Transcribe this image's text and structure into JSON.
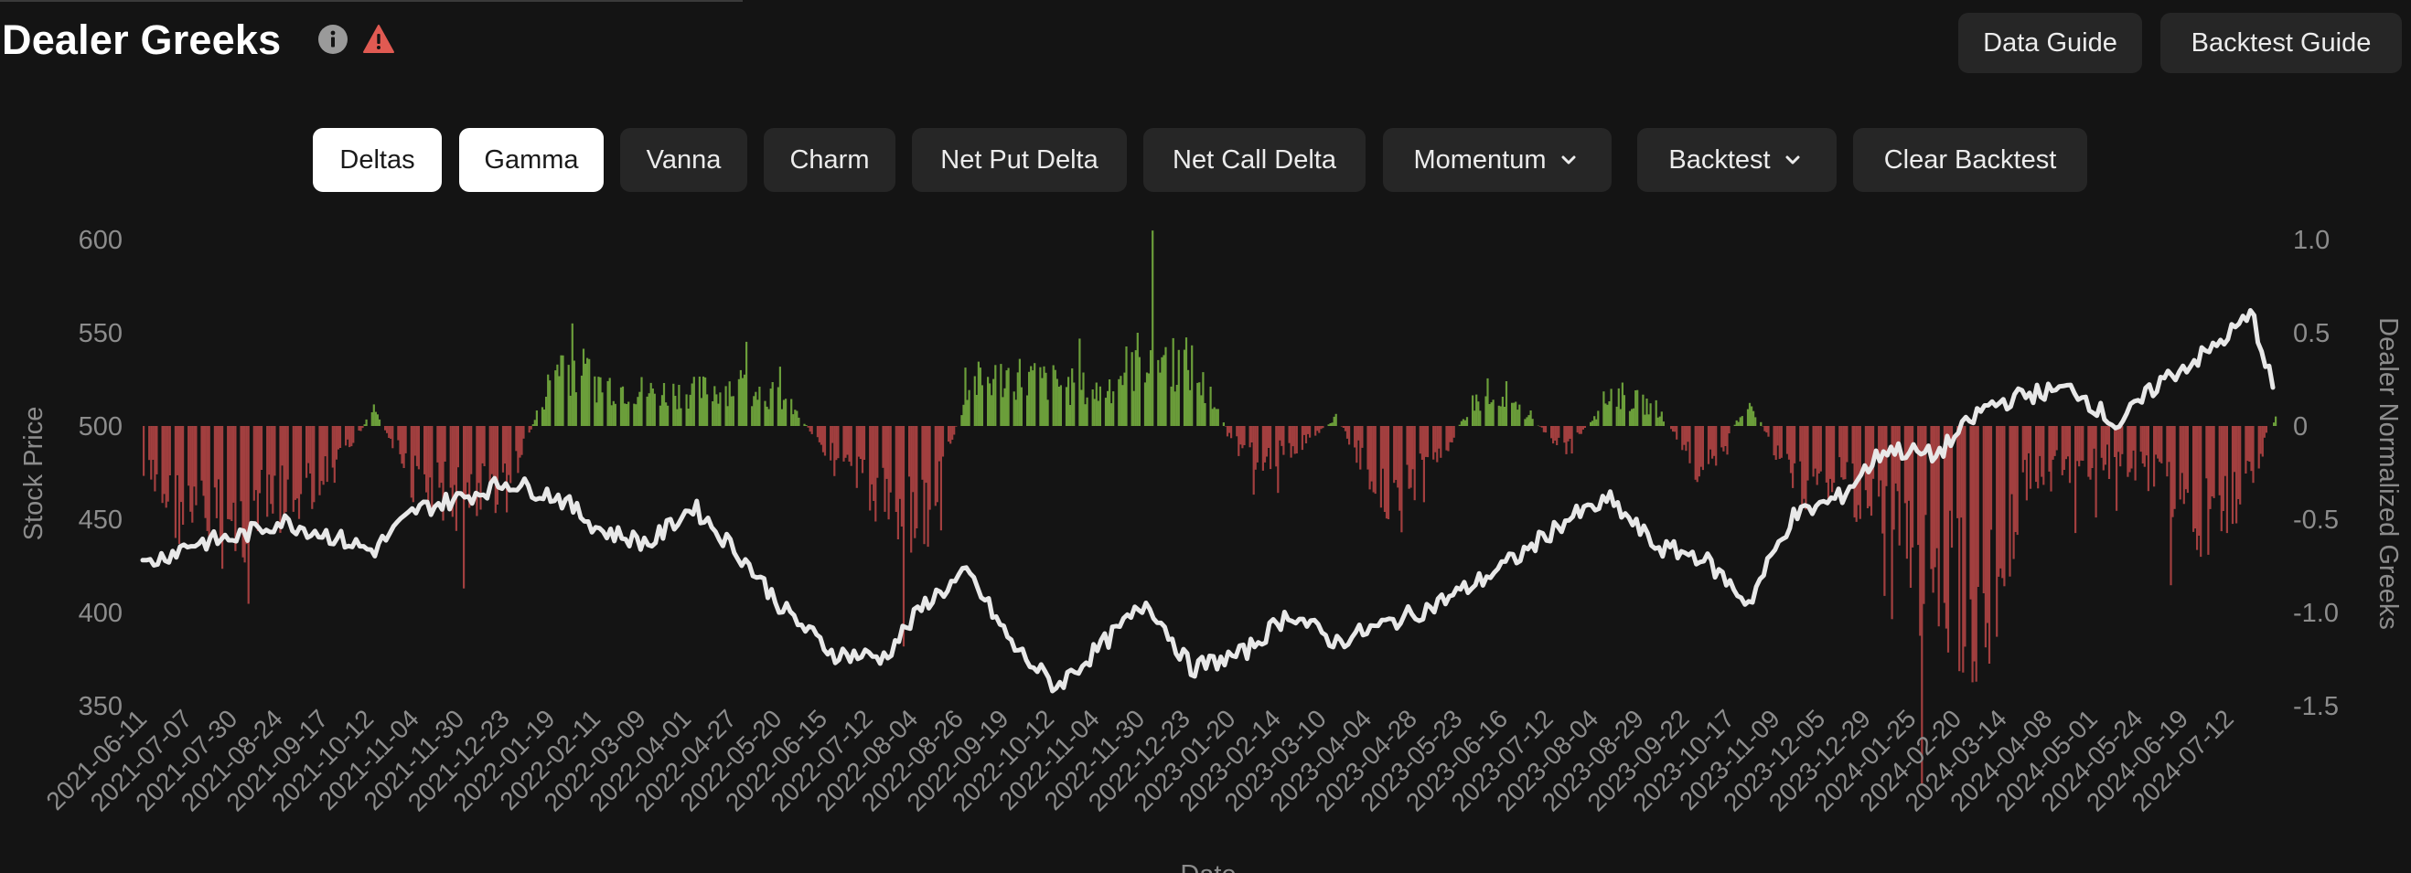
{
  "header": {
    "title": "Dealer Greeks",
    "data_guide_label": "Data Guide",
    "backtest_guide_label": "Backtest Guide"
  },
  "tabs": [
    {
      "label": "Deltas",
      "active": true
    },
    {
      "label": "Gamma",
      "active": true
    },
    {
      "label": "Vanna",
      "active": false
    },
    {
      "label": "Charm",
      "active": false
    },
    {
      "label": "Net Put Delta",
      "active": false
    },
    {
      "label": "Net Call Delta",
      "active": false
    },
    {
      "label": "Momentum",
      "active": false,
      "dropdown": true
    },
    {
      "label": "Backtest",
      "active": false,
      "dropdown": true
    },
    {
      "label": "Clear Backtest",
      "active": false
    }
  ],
  "colors": {
    "background": "#141414",
    "button": "#262626",
    "active_button": "#ffffff",
    "positive_bar": "#6b9e3a",
    "negative_bar": "#a23f3f",
    "price_line": "#e8e8e8",
    "axis_text": "#8c8c8c",
    "warning": "#e05a52"
  },
  "chart_data": {
    "type": "bar",
    "xlabel": "Date",
    "ylabel": "Stock Price",
    "y2label": "Dealer Normalized Greeks",
    "ylim": [
      350,
      600
    ],
    "y2lim": [
      -1.5,
      1.0
    ],
    "yticks": [
      600,
      550,
      500,
      450,
      400,
      350
    ],
    "y2ticks": [
      "1.0",
      "0.5",
      "0",
      "-0.5",
      "-1.0",
      "-1.5"
    ],
    "x_ticks": [
      "2021-06-11",
      "2021-07-07",
      "2021-07-30",
      "2021-08-24",
      "2021-09-17",
      "2021-10-12",
      "2021-11-04",
      "2021-11-30",
      "2021-12-23",
      "2022-01-19",
      "2022-02-11",
      "2022-03-09",
      "2022-04-01",
      "2022-04-27",
      "2022-05-20",
      "2022-06-15",
      "2022-07-12",
      "2022-08-04",
      "2022-08-26",
      "2022-09-19",
      "2022-10-12",
      "2022-11-04",
      "2022-11-30",
      "2022-12-23",
      "2023-01-20",
      "2023-02-14",
      "2023-03-10",
      "2023-04-04",
      "2023-04-28",
      "2023-05-23",
      "2023-06-16",
      "2023-07-12",
      "2023-08-04",
      "2023-08-29",
      "2023-09-22",
      "2023-10-17",
      "2023-11-09",
      "2023-12-05",
      "2023-12-29",
      "2024-01-25",
      "2024-02-20",
      "2024-03-14",
      "2024-04-08",
      "2024-05-01",
      "2024-05-24",
      "2024-06-19",
      "2024-07-12"
    ],
    "series": [
      {
        "name": "Stock Price",
        "axis": "left",
        "type": "line",
        "dates": [
          "2021-06-11",
          "2021-07-07",
          "2021-07-30",
          "2021-08-24",
          "2021-09-17",
          "2021-10-12",
          "2021-11-04",
          "2021-11-30",
          "2021-12-23",
          "2022-01-19",
          "2022-02-11",
          "2022-03-09",
          "2022-04-01",
          "2022-04-27",
          "2022-05-20",
          "2022-06-15",
          "2022-07-12",
          "2022-08-04",
          "2022-08-26",
          "2022-09-19",
          "2022-10-12",
          "2022-11-04",
          "2022-11-30",
          "2022-12-23",
          "2023-01-20",
          "2023-02-14",
          "2023-03-10",
          "2023-04-04",
          "2023-04-28",
          "2023-05-23",
          "2023-06-16",
          "2023-07-12",
          "2023-08-04",
          "2023-08-29",
          "2023-09-22",
          "2023-10-17",
          "2023-11-09",
          "2023-12-05",
          "2023-12-29",
          "2024-01-25",
          "2024-02-20",
          "2024-03-14",
          "2024-04-08",
          "2024-05-01",
          "2024-05-24",
          "2024-06-19",
          "2024-07-12",
          "2024-07-24"
        ],
        "values": [
          425,
          437,
          440,
          449,
          442,
          433,
          455,
          462,
          470,
          462,
          444,
          437,
          457,
          430,
          401,
          378,
          376,
          406,
          421,
          382,
          360,
          381,
          406,
          370,
          378,
          400,
          384,
          393,
          402,
          415,
          430,
          450,
          460,
          435,
          430,
          405,
          451,
          462,
          488,
          484,
          510,
          517,
          520,
          500,
          524,
          540,
          560,
          517
        ]
      },
      {
        "name": "Dealer Normalized Greeks",
        "axis": "right",
        "type": "bar",
        "dates": [
          "2021-06-11",
          "2021-07-07",
          "2021-07-30",
          "2021-08-24",
          "2021-09-17",
          "2021-10-12",
          "2021-11-04",
          "2021-11-30",
          "2021-12-23",
          "2022-01-19",
          "2022-02-11",
          "2022-03-09",
          "2022-04-01",
          "2022-04-27",
          "2022-05-20",
          "2022-06-15",
          "2022-07-12",
          "2022-08-04",
          "2022-08-26",
          "2022-09-19",
          "2022-10-12",
          "2022-11-04",
          "2022-11-30",
          "2022-12-23",
          "2023-01-20",
          "2023-02-14",
          "2023-03-10",
          "2023-04-04",
          "2023-04-28",
          "2023-05-23",
          "2023-06-16",
          "2023-07-12",
          "2023-08-04",
          "2023-08-29",
          "2023-09-22",
          "2023-10-17",
          "2023-11-09",
          "2023-12-05",
          "2023-12-29",
          "2024-01-25",
          "2024-02-20",
          "2024-03-14",
          "2024-04-08",
          "2024-05-01",
          "2024-05-24",
          "2024-06-19",
          "2024-07-12",
          "2024-07-24"
        ],
        "values": [
          -0.3,
          -0.55,
          -0.6,
          -0.45,
          -0.35,
          0.1,
          -0.35,
          -0.4,
          -0.35,
          0.4,
          0.25,
          0.2,
          0.2,
          0.25,
          0.15,
          -0.2,
          -0.45,
          -0.55,
          0.25,
          0.3,
          0.25,
          0.2,
          0.45,
          0.35,
          -0.2,
          -0.15,
          0.05,
          -0.4,
          -0.3,
          0.15,
          0.1,
          -0.15,
          0.2,
          0.1,
          -0.3,
          0.15,
          -0.35,
          -0.3,
          -0.55,
          -0.9,
          -1.1,
          -0.3,
          -0.25,
          -0.2,
          -0.3,
          -0.65,
          -0.25,
          0.05
        ]
      }
    ],
    "grid": false,
    "legend": "none"
  }
}
